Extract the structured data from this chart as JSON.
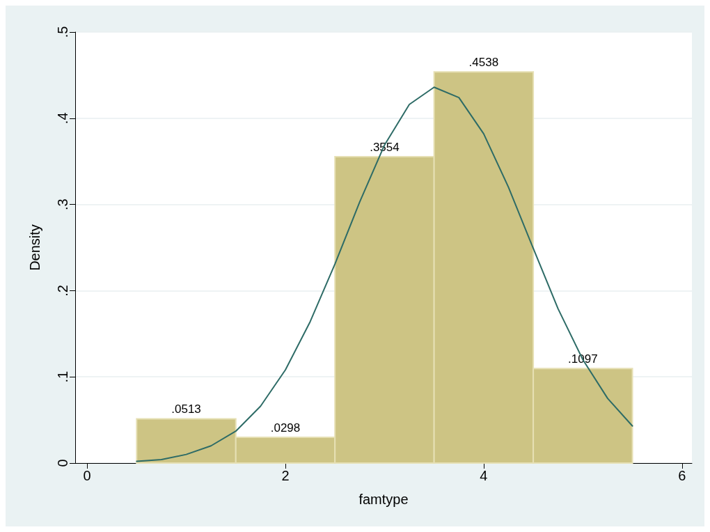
{
  "chart_data": {
    "type": "histogram",
    "xlabel": "famtype",
    "ylabel": "Density",
    "bins": [
      0.5,
      1.5,
      2.5,
      3.5,
      4.5,
      5.5
    ],
    "series": [
      {
        "color": "#cdc484",
        "values": [
          0.0513,
          0.0298,
          0.3554,
          0.4538,
          0.1097
        ],
        "value_labels": [
          ".0513",
          ".0298",
          ".3554",
          ".4538",
          ".1097"
        ]
      },
      {
        "type": "line",
        "color": "#2d6b66",
        "x": [
          0.5,
          0.75,
          1,
          1.25,
          1.5,
          1.75,
          2,
          2.25,
          2.5,
          2.75,
          3,
          3.25,
          3.5,
          3.75,
          4,
          4.25,
          4.5,
          4.75,
          5,
          5.25,
          5.5
        ],
        "values": [
          0.002,
          0.004,
          0.01,
          0.02,
          0.037,
          0.066,
          0.108,
          0.164,
          0.231,
          0.303,
          0.369,
          0.416,
          0.436,
          0.424,
          0.382,
          0.32,
          0.249,
          0.179,
          0.12,
          0.075,
          0.043
        ]
      }
    ],
    "xlim": [
      -0.12,
      6.1
    ],
    "xticks": [
      0,
      2,
      4,
      6
    ],
    "ylim": [
      0,
      0.5
    ],
    "yticks": [
      0,
      {
        "value": 0.1,
        "label": ".1"
      },
      {
        "value": 0.2,
        "label": ".2"
      },
      {
        "value": 0.3,
        "label": ".3"
      },
      {
        "value": 0.4,
        "label": ".4"
      },
      {
        "value": 0.5,
        "label": ".5"
      }
    ],
    "grid": "y",
    "marker": "none",
    "line_style": "solid"
  }
}
